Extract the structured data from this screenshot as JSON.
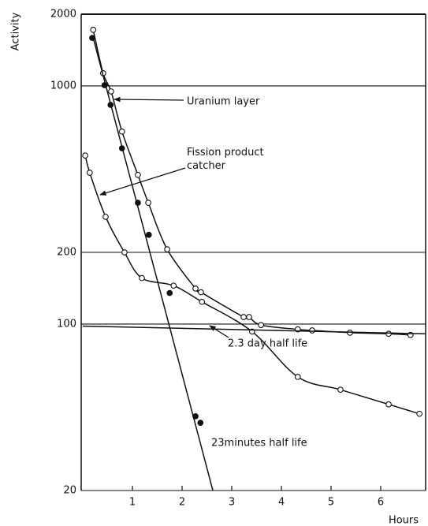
{
  "chart_data": {
    "type": "line",
    "y_label": "Activity",
    "x_label": "Hours",
    "log_y": true,
    "grid": true,
    "xlim": [
      0,
      6.9
    ],
    "ylim": [
      20,
      2000
    ],
    "xticks": [
      1,
      2,
      3,
      4,
      5,
      6
    ],
    "yticks": [
      20,
      100,
      200,
      1000,
      2000
    ],
    "series": [
      {
        "name": "Uranium layer",
        "color": "#111111",
        "marker": "open",
        "smooth": true,
        "x": [
          0.21,
          0.41,
          0.57,
          0.79,
          1.11,
          1.32,
          1.7,
          2.27,
          2.38,
          3.24,
          3.35,
          3.59,
          4.33,
          4.62,
          5.38,
          6.16,
          6.6
        ],
        "values": [
          1720,
          1130,
          948,
          643,
          423,
          323,
          206,
          141,
          136,
          107,
          107,
          99,
          95,
          94,
          92,
          91,
          90
        ]
      },
      {
        "name": "Fission product catcher",
        "color": "#111111",
        "marker": "open",
        "smooth": true,
        "x": [
          0.05,
          0.14,
          0.46,
          0.84,
          1.19,
          1.83,
          2.4,
          3.41,
          4.33,
          5.19,
          6.16,
          6.78
        ],
        "values": [
          510,
          432,
          282,
          200,
          156,
          145,
          124,
          93,
          60,
          53,
          46,
          42
        ]
      },
      {
        "name": "23minutes half life",
        "color": "#111111",
        "marker": "filled",
        "smooth": false,
        "line": false,
        "x": [
          0.19,
          0.44,
          0.56,
          0.79,
          1.11,
          1.33,
          1.75,
          2.27,
          2.37
        ],
        "values": [
          1590,
          1007,
          832,
          547,
          323,
          237,
          135,
          41,
          38.5
        ]
      },
      {
        "name": "23minutes half life",
        "color": "#111111",
        "marker": "none",
        "smooth": false,
        "x": [
          0.21,
          2.62
        ],
        "values": [
          1590,
          20
        ]
      },
      {
        "name": "2.3 day half life",
        "color": "#111111",
        "marker": "none",
        "smooth": false,
        "x": [
          0,
          6.9
        ],
        "values": [
          98,
          91
        ]
      }
    ]
  }
}
